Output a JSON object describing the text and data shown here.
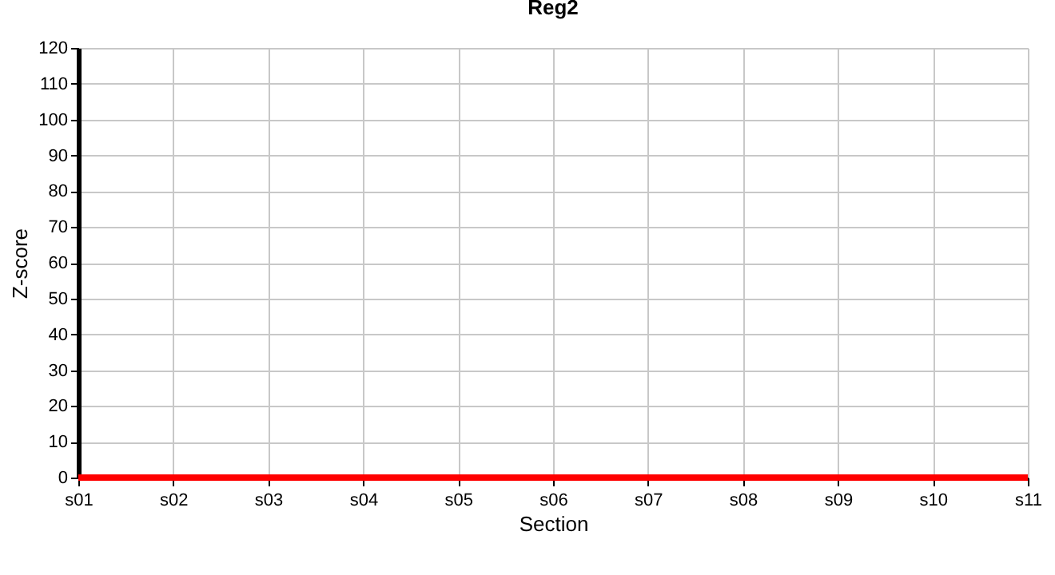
{
  "chart_data": {
    "type": "line",
    "title": "Reg2",
    "xlabel": "Section",
    "ylabel": "Z-score",
    "categories": [
      "s01",
      "s02",
      "s03",
      "s04",
      "s05",
      "s06",
      "s07",
      "s08",
      "s09",
      "s10",
      "s11"
    ],
    "series": [
      {
        "color": "#ff0000",
        "values": [
          0,
          0,
          0,
          0,
          0,
          0,
          0,
          0,
          0,
          0,
          0
        ]
      }
    ],
    "ylim": [
      0,
      120
    ],
    "yticks": [
      0,
      10,
      20,
      30,
      40,
      50,
      60,
      70,
      80,
      90,
      100,
      110,
      120
    ],
    "grid": true,
    "legend": false,
    "marker": "none",
    "line_style": "solid"
  }
}
